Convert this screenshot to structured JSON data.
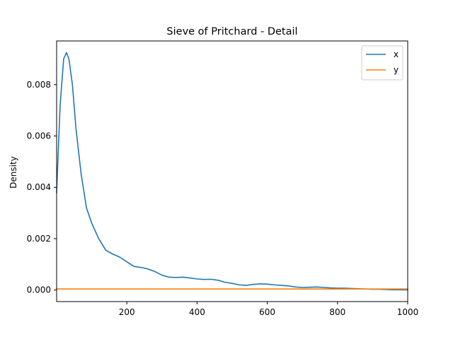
{
  "chart_data": {
    "type": "line",
    "title": "Sieve of Pritchard - Detail",
    "xlabel": "",
    "ylabel": "Density",
    "xlim": [
      0,
      1000
    ],
    "ylim": [
      -0.00045,
      0.0097
    ],
    "xticks": [
      200,
      400,
      600,
      800,
      1000
    ],
    "yticks": [
      0.0,
      0.002,
      0.004,
      0.006,
      0.008
    ],
    "ytick_labels": [
      "0.000",
      "0.002",
      "0.004",
      "0.006",
      "0.008"
    ],
    "grid": false,
    "legend_position": "top-right",
    "series": [
      {
        "name": "x",
        "color": "#1f77b4",
        "x": [
          0,
          10,
          20,
          28,
          35,
          45,
          55,
          70,
          85,
          100,
          120,
          140,
          160,
          180,
          200,
          220,
          240,
          260,
          280,
          300,
          320,
          340,
          360,
          380,
          400,
          420,
          440,
          460,
          480,
          500,
          520,
          540,
          560,
          580,
          600,
          620,
          640,
          660,
          680,
          700,
          720,
          740,
          760,
          780,
          800,
          820,
          840,
          860,
          880,
          900,
          920,
          940,
          960,
          980,
          1000
        ],
        "y": [
          0.0038,
          0.0072,
          0.009,
          0.00925,
          0.009,
          0.008,
          0.0063,
          0.0045,
          0.0032,
          0.0026,
          0.002,
          0.00155,
          0.0014,
          0.00128,
          0.0011,
          0.00092,
          0.00088,
          0.00082,
          0.00072,
          0.00058,
          0.0005,
          0.00049,
          0.0005,
          0.00047,
          0.00043,
          0.00041,
          0.00042,
          0.00038,
          0.0003,
          0.00026,
          0.0002,
          0.00018,
          0.00022,
          0.00024,
          0.00023,
          0.0002,
          0.00018,
          0.00016,
          0.00012,
          0.0001,
          0.00011,
          0.00012,
          0.0001,
          8e-05,
          7e-05,
          7e-05,
          6e-05,
          5e-05,
          4e-05,
          3e-05,
          3e-05,
          2e-05,
          1e-05,
          1e-05,
          5e-06
        ]
      },
      {
        "name": "y",
        "color": "#ff7f0e",
        "x": [
          0,
          1000
        ],
        "y": [
          4e-05,
          4e-05
        ]
      }
    ]
  }
}
